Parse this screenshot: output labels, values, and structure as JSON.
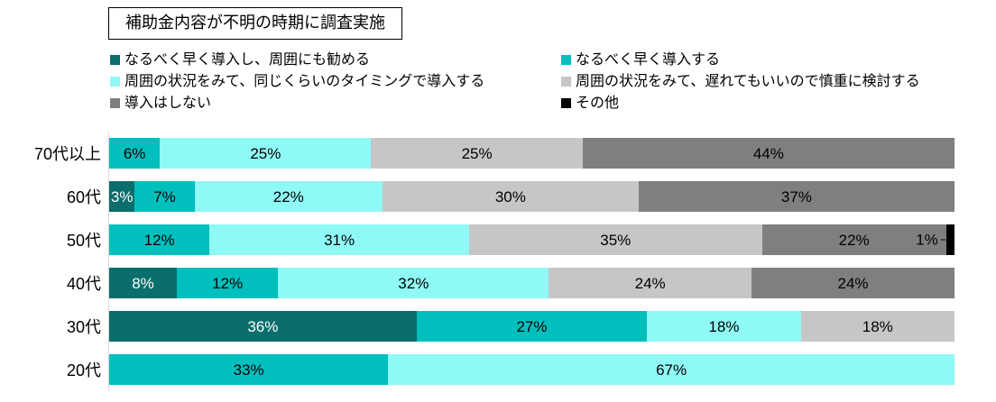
{
  "chart_data": {
    "type": "bar",
    "orientation": "horizontal-stacked",
    "title": "補助金内容が不明の時期に調査実施",
    "unit": "%",
    "xlim": [
      0,
      100
    ],
    "grid": false,
    "legend_position": "top",
    "axis_line_color": "#d9d9d9",
    "categories": [
      "70代以上",
      "60代",
      "50代",
      "40代",
      "30代",
      "20代"
    ],
    "series": [
      {
        "name": "なるべく早く導入し、周囲にも勧める",
        "color": "#0A6F6C",
        "label_color": "#ffffff",
        "values": [
          0,
          3,
          0,
          8,
          36,
          0
        ]
      },
      {
        "name": "なるべく早く導入する",
        "color": "#00BFBC",
        "label_color": "#000000",
        "values": [
          6,
          7,
          12,
          12,
          27,
          33
        ]
      },
      {
        "name": "周囲の状況をみて、同じくらいのタイミングで導入する",
        "color": "#8FF9F6",
        "label_color": "#000000",
        "values": [
          25,
          22,
          31,
          32,
          18,
          67
        ]
      },
      {
        "name": "周囲の状況をみて、遅れてもいいので慎重に検討する",
        "color": "#C6C6C6",
        "label_color": "#000000",
        "values": [
          25,
          30,
          35,
          24,
          18,
          0
        ]
      },
      {
        "name": "導入はしない",
        "color": "#7F7F7F",
        "label_color": "#000000",
        "values": [
          44,
          37,
          22,
          24,
          0,
          0
        ]
      },
      {
        "name": "その他",
        "color": "#000000",
        "label_color": "#000000",
        "values": [
          0,
          0,
          1,
          0,
          0,
          0
        ]
      }
    ]
  }
}
